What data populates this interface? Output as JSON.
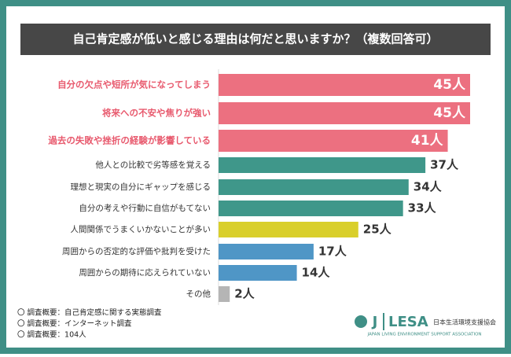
{
  "chart_data": {
    "type": "hbar",
    "title": "自己肯定感が低いと感じる理由は何だと思いますか？（複数回答可）",
    "categories": [
      "自分の欠点や短所が気になってしまう",
      "将来への不安や焦りが強い",
      "過去の失敗や挫折の経験が影響している",
      "他人との比較で劣等感を覚える",
      "理想と現実の自分にギャップを感じる",
      "自分の考えや行動に自信がもてない",
      "人間関係でうまくいかないことが多い",
      "周囲からの否定的な評価や批判を受けた",
      "周囲からの期待に応えられていない",
      "その他"
    ],
    "values": [
      45,
      45,
      41,
      37,
      34,
      33,
      25,
      17,
      14,
      2
    ],
    "value_labels": [
      "45人",
      "45人",
      "41人",
      "37人",
      "34人",
      "33人",
      "25人",
      "17人",
      "14人",
      "2人"
    ],
    "colors": [
      "#ec7080",
      "#ec7080",
      "#ec7080",
      "#3f978a",
      "#3f978a",
      "#3f978a",
      "#d9cf2b",
      "#4f96c6",
      "#4f96c6",
      "#b5b5b5"
    ],
    "label_colors": [
      "#e85a6e",
      "#e85a6e",
      "#e85a6e",
      "#333333",
      "#333333",
      "#333333",
      "#333333",
      "#333333",
      "#333333",
      "#333333"
    ],
    "notes": [
      "〇 調査概要：自己肯定感に関する実態調査",
      "〇 調査概要：インターネット調査",
      "〇 調査概要：104人"
    ],
    "logo": {
      "mark": "J",
      "name": "LESA",
      "org": "日本生活環境支援協会",
      "org_en": "JAPAN LIVING ENVIRONMENT SUPPORT ASSOCIATION"
    }
  }
}
